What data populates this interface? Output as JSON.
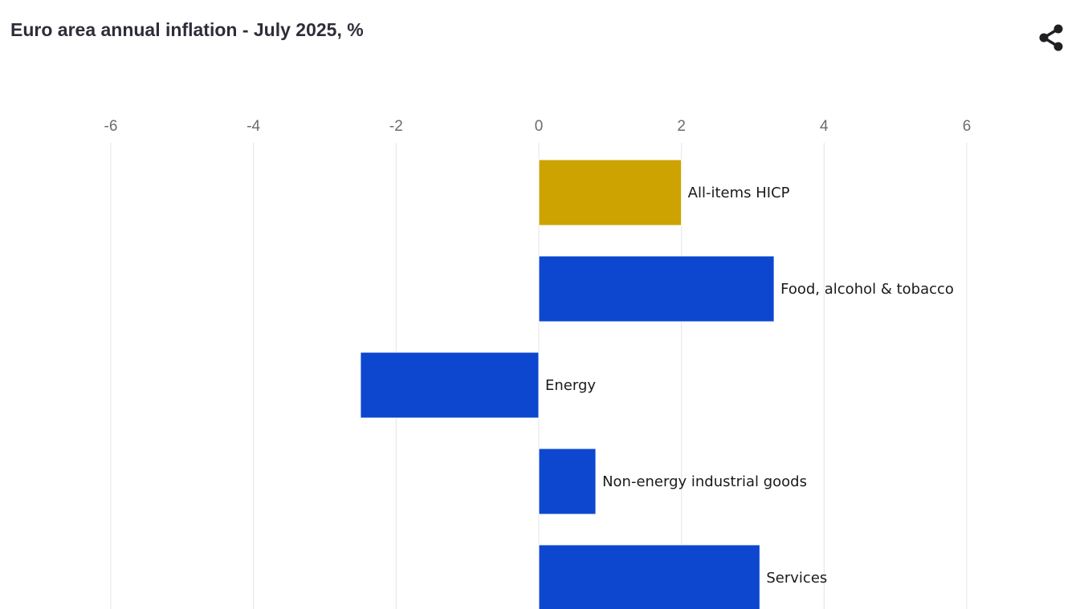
{
  "header": {
    "title": "Euro area annual inflation - July 2025, %",
    "share_icon": "share-icon"
  },
  "chart_data": {
    "type": "bar",
    "orientation": "horizontal",
    "title": "Euro area annual inflation - July 2025, %",
    "xlabel": "",
    "ylabel": "",
    "xlim": [
      -6,
      6
    ],
    "xticks": [
      -6,
      -4,
      -2,
      0,
      2,
      4,
      6
    ],
    "grid": true,
    "legend": "none",
    "categories": [
      "All-items HICP",
      "Food, alcohol & tobacco",
      "Energy",
      "Non-energy industrial goods",
      "Services"
    ],
    "values": [
      2.0,
      3.3,
      -2.5,
      0.8,
      3.1
    ],
    "colors": [
      "#cca300",
      "#0d47cf",
      "#0d47cf",
      "#0d47cf",
      "#0d47cf"
    ]
  }
}
